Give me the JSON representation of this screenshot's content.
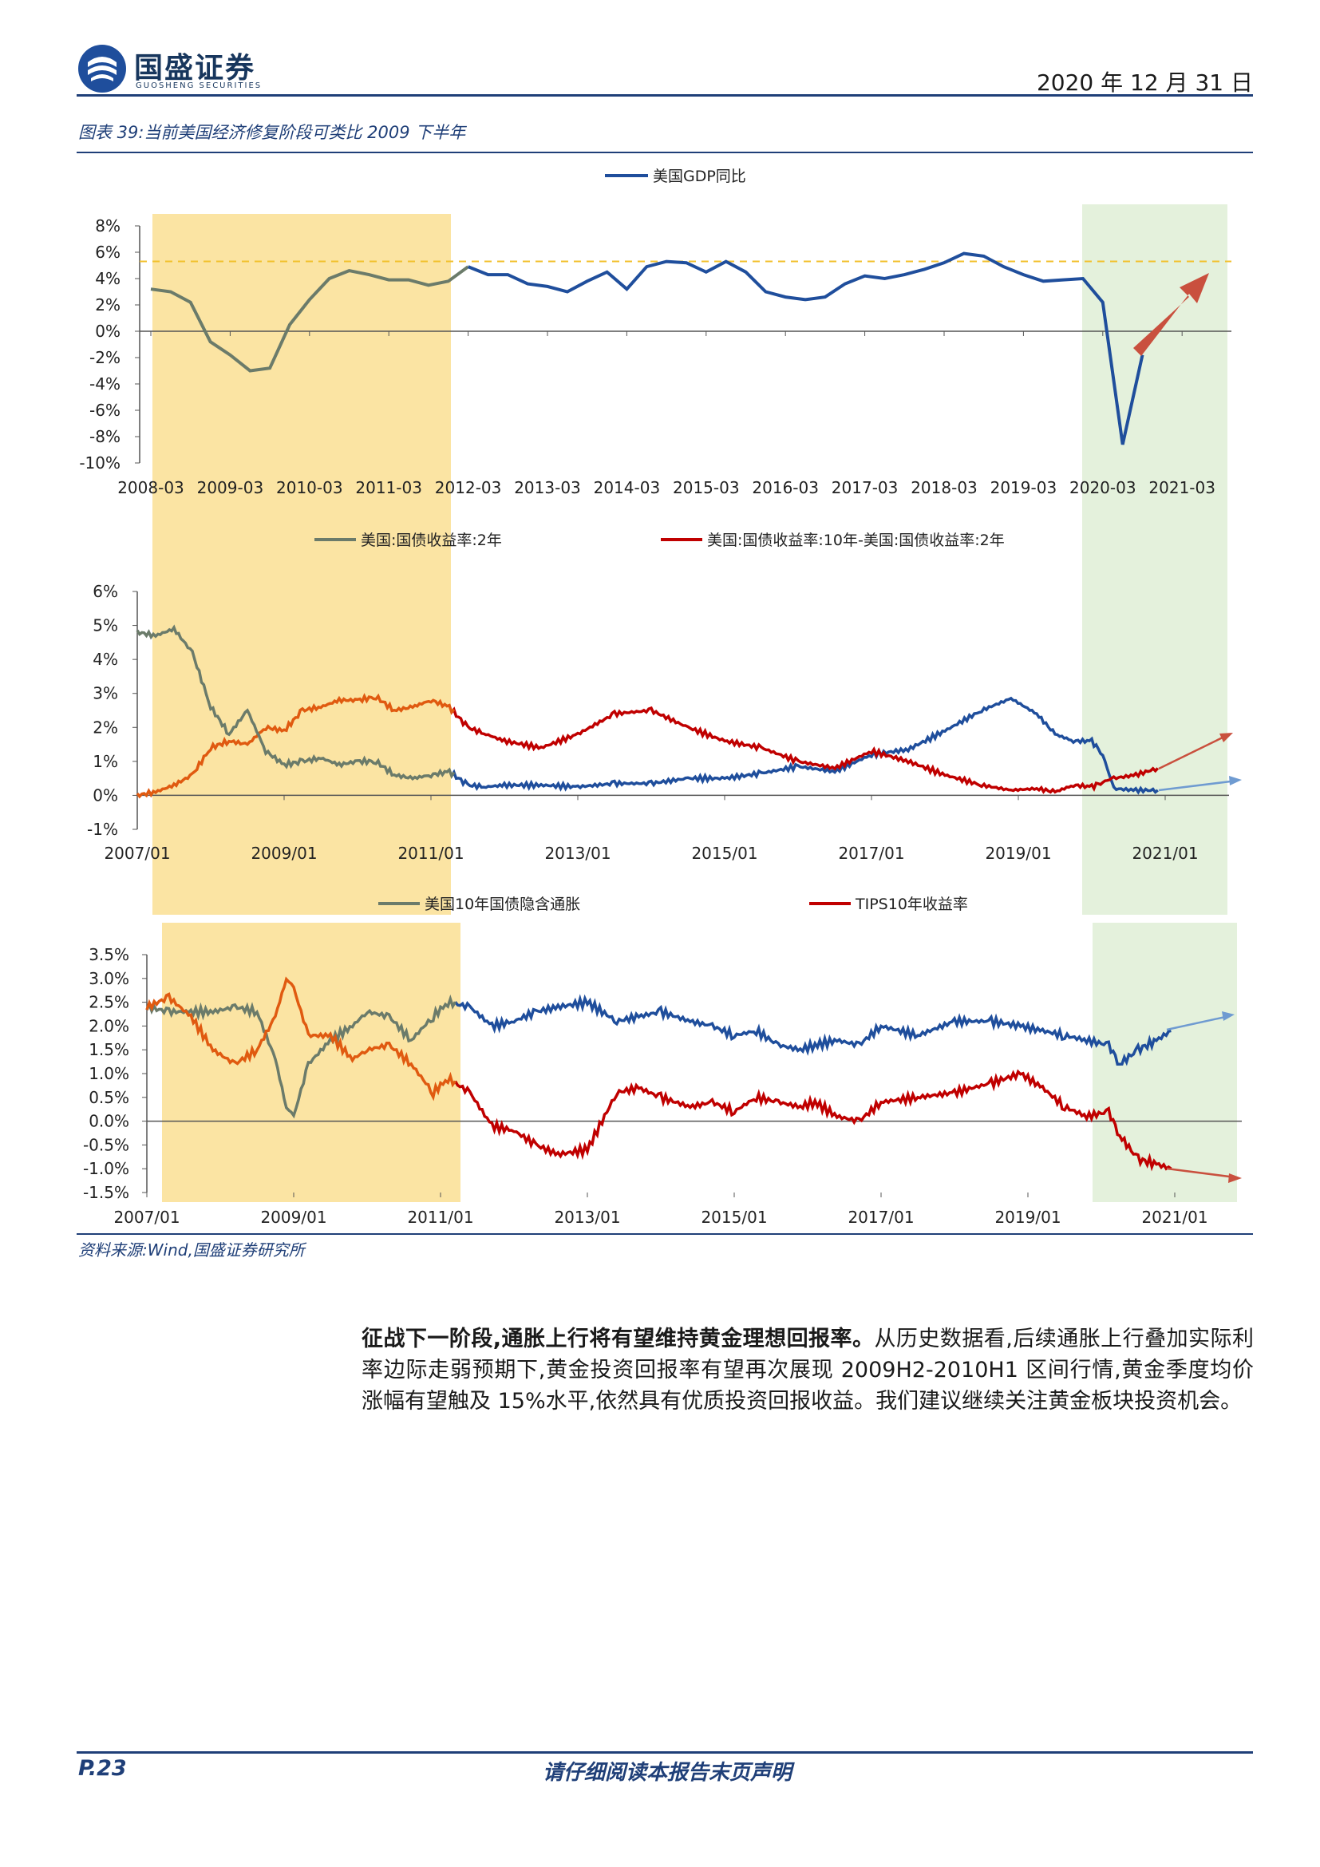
{
  "header": {
    "brand_cn": "国盛证券",
    "brand_en": "GUOSHENG SECURITIES",
    "date": "2020 年 12 月 31 日"
  },
  "figure": {
    "title": "图表 39:当前美国经济修复阶段可类比 2009 下半年",
    "source": "资料来源:Wind,国盛证券研究所"
  },
  "colors": {
    "brand": "#1f3f78",
    "blue": "#1f4e9c",
    "gray_green": "#6b7b6a",
    "red": "#c00000",
    "orange": "#e05a10",
    "yellow_band": "#fbe4a3",
    "green_band": "#e4f1dc",
    "dashed": "#f2c12e",
    "arrow_red": "#c9503e",
    "arrow_blue": "#6f9bd1"
  },
  "chart_data": [
    {
      "type": "line",
      "series": [
        {
          "name": "美国GDP同比",
          "x": [
            "2008-03",
            "2008-06",
            "2008-09",
            "2008-12",
            "2009-03",
            "2009-06",
            "2009-09",
            "2009-12",
            "2010-03",
            "2010-06",
            "2010-09",
            "2010-12",
            "2011-03",
            "2011-06",
            "2011-09",
            "2011-12",
            "2012-03",
            "2012-06",
            "2012-09",
            "2012-12",
            "2013-03",
            "2013-06",
            "2013-09",
            "2013-12",
            "2014-03",
            "2014-06",
            "2014-09",
            "2014-12",
            "2015-03",
            "2015-06",
            "2015-09",
            "2015-12",
            "2016-03",
            "2016-06",
            "2016-09",
            "2016-12",
            "2017-03",
            "2017-06",
            "2017-09",
            "2017-12",
            "2018-03",
            "2018-06",
            "2018-09",
            "2018-12",
            "2019-03",
            "2019-06",
            "2019-09",
            "2019-12",
            "2020-03",
            "2020-06",
            "2020-09"
          ],
          "values": [
            3.2,
            3.0,
            2.2,
            -0.8,
            -1.8,
            -3.0,
            -2.8,
            0.5,
            2.4,
            4.0,
            4.6,
            4.3,
            3.9,
            3.9,
            3.5,
            3.8,
            4.9,
            4.3,
            4.3,
            3.6,
            3.4,
            3.0,
            3.8,
            4.5,
            3.2,
            4.9,
            5.3,
            5.2,
            4.5,
            5.3,
            4.5,
            3.0,
            2.6,
            2.4,
            2.6,
            3.6,
            4.2,
            4.0,
            4.3,
            4.7,
            5.2,
            5.9,
            5.7,
            4.9,
            4.3,
            3.8,
            3.9,
            4.0,
            2.2,
            -8.6,
            -1.8
          ]
        }
      ],
      "reference_line": 5.3,
      "xlabels": [
        "2008-03",
        "2009-03",
        "2010-03",
        "2011-03",
        "2012-03",
        "2013-03",
        "2014-03",
        "2015-03",
        "2016-03",
        "2017-03",
        "2018-03",
        "2019-03",
        "2020-03",
        "2021-03"
      ],
      "yticks": [
        "8%",
        "6%",
        "4%",
        "2%",
        "0%",
        "-2%",
        "-4%",
        "-6%",
        "-8%",
        "-10%"
      ],
      "ylim": [
        -10,
        8
      ],
      "legend": "top"
    },
    {
      "type": "line",
      "series": [
        {
          "name": "美国:国债收益率:2年",
          "color": "blue",
          "x": [
            2007.0,
            2007.25,
            2007.5,
            2007.75,
            2008.0,
            2008.25,
            2008.5,
            2008.75,
            2009.0,
            2009.25,
            2009.5,
            2009.75,
            2010.0,
            2010.25,
            2010.5,
            2010.75,
            2011.0,
            2011.25,
            2011.5,
            2011.75,
            2012.0,
            2012.5,
            2013.0,
            2013.5,
            2014.0,
            2014.5,
            2015.0,
            2015.5,
            2016.0,
            2016.5,
            2017.0,
            2017.5,
            2018.0,
            2018.5,
            2018.9,
            2019.25,
            2019.5,
            2019.75,
            2020.0,
            2020.15,
            2020.3,
            2020.6,
            2020.9
          ],
          "values": [
            4.8,
            4.7,
            4.9,
            4.2,
            2.6,
            1.8,
            2.5,
            1.3,
            0.9,
            1.0,
            1.1,
            0.9,
            1.0,
            1.0,
            0.6,
            0.5,
            0.6,
            0.7,
            0.3,
            0.25,
            0.3,
            0.3,
            0.25,
            0.35,
            0.35,
            0.5,
            0.5,
            0.65,
            0.85,
            0.7,
            1.2,
            1.35,
            1.9,
            2.5,
            2.85,
            2.4,
            1.8,
            1.6,
            1.6,
            1.2,
            0.2,
            0.15,
            0.15
          ]
        },
        {
          "name": "美国:国债收益率:10年-美国:国债收益率:2年",
          "color": "red",
          "x": [
            2007.0,
            2007.25,
            2007.5,
            2007.75,
            2008.0,
            2008.25,
            2008.5,
            2008.75,
            2009.0,
            2009.25,
            2009.5,
            2009.75,
            2010.0,
            2010.25,
            2010.5,
            2010.75,
            2011.0,
            2011.25,
            2011.5,
            2011.75,
            2012.0,
            2012.5,
            2013.0,
            2013.5,
            2014.0,
            2014.5,
            2015.0,
            2015.5,
            2016.0,
            2016.5,
            2017.0,
            2017.5,
            2018.0,
            2018.5,
            2018.9,
            2019.25,
            2019.5,
            2019.75,
            2020.0,
            2020.15,
            2020.3,
            2020.6,
            2020.9
          ],
          "values": [
            0.0,
            0.1,
            0.3,
            0.6,
            1.4,
            1.6,
            1.5,
            2.0,
            1.9,
            2.5,
            2.6,
            2.8,
            2.8,
            2.9,
            2.5,
            2.6,
            2.8,
            2.6,
            2.0,
            1.8,
            1.6,
            1.4,
            1.8,
            2.4,
            2.5,
            2.0,
            1.6,
            1.4,
            1.0,
            0.8,
            1.3,
            1.0,
            0.6,
            0.3,
            0.15,
            0.2,
            0.1,
            0.3,
            0.25,
            0.4,
            0.5,
            0.6,
            0.8
          ]
        }
      ],
      "xlabels": [
        "2007/01",
        "2009/01",
        "2011/01",
        "2013/01",
        "2015/01",
        "2017/01",
        "2019/01",
        "2021/01"
      ],
      "yticks": [
        "6%",
        "5%",
        "4%",
        "3%",
        "2%",
        "1%",
        "0%",
        "-1%"
      ],
      "ylim": [
        -1,
        6
      ],
      "legend": "top"
    },
    {
      "type": "line",
      "series": [
        {
          "name": "美国10年国债隐含通胀",
          "color": "blue",
          "x": [
            2007.0,
            2007.3,
            2007.6,
            2007.9,
            2008.2,
            2008.5,
            2008.75,
            2008.9,
            2009.0,
            2009.2,
            2009.5,
            2009.8,
            2010.0,
            2010.3,
            2010.6,
            2010.9,
            2011.1,
            2011.4,
            2011.7,
            2012.0,
            2012.3,
            2012.6,
            2013.0,
            2013.4,
            2013.7,
            2014.0,
            2014.4,
            2014.7,
            2015.0,
            2015.3,
            2015.6,
            2015.9,
            2016.1,
            2016.4,
            2016.7,
            2017.0,
            2017.5,
            2018.0,
            2018.5,
            2018.9,
            2019.2,
            2019.5,
            2019.8,
            2020.1,
            2020.25,
            2020.5,
            2020.75,
            2020.95
          ],
          "values": [
            2.4,
            2.3,
            2.3,
            2.3,
            2.4,
            2.3,
            1.3,
            0.3,
            0.1,
            1.2,
            1.7,
            2.0,
            2.3,
            2.2,
            1.7,
            2.2,
            2.5,
            2.4,
            2.0,
            2.1,
            2.3,
            2.4,
            2.5,
            2.1,
            2.2,
            2.3,
            2.1,
            2.0,
            1.8,
            1.9,
            1.6,
            1.5,
            1.6,
            1.7,
            1.6,
            2.0,
            1.8,
            2.1,
            2.1,
            2.0,
            1.9,
            1.8,
            1.7,
            1.6,
            1.2,
            1.5,
            1.7,
            1.9
          ]
        },
        {
          "name": "TIPS10年收益率",
          "color": "red",
          "x": [
            2007.0,
            2007.3,
            2007.6,
            2007.9,
            2008.2,
            2008.5,
            2008.75,
            2008.9,
            2009.0,
            2009.2,
            2009.5,
            2009.8,
            2010.0,
            2010.3,
            2010.6,
            2010.9,
            2011.1,
            2011.4,
            2011.7,
            2012.0,
            2012.3,
            2012.6,
            2013.0,
            2013.4,
            2013.7,
            2014.0,
            2014.4,
            2014.7,
            2015.0,
            2015.3,
            2015.6,
            2015.9,
            2016.1,
            2016.4,
            2016.7,
            2017.0,
            2017.5,
            2018.0,
            2018.5,
            2018.9,
            2019.2,
            2019.5,
            2019.8,
            2020.1,
            2020.25,
            2020.5,
            2020.75,
            2020.95
          ],
          "values": [
            2.4,
            2.6,
            2.2,
            1.5,
            1.2,
            1.5,
            2.2,
            3.0,
            2.8,
            1.8,
            1.8,
            1.3,
            1.5,
            1.6,
            1.2,
            0.6,
            0.9,
            0.6,
            -0.1,
            -0.2,
            -0.5,
            -0.7,
            -0.6,
            0.6,
            0.7,
            0.5,
            0.3,
            0.4,
            0.2,
            0.5,
            0.4,
            0.3,
            0.4,
            0.1,
            0.0,
            0.4,
            0.5,
            0.6,
            0.8,
            1.0,
            0.7,
            0.3,
            0.1,
            0.2,
            -0.3,
            -0.8,
            -0.9,
            -1.0
          ]
        }
      ],
      "xlabels": [
        "2007/01",
        "2009/01",
        "2011/01",
        "2013/01",
        "2015/01",
        "2017/01",
        "2019/01",
        "2021/01"
      ],
      "yticks": [
        "3.5%",
        "3.0%",
        "2.5%",
        "2.0%",
        "1.5%",
        "1.0%",
        "0.5%",
        "0.0%",
        "-0.5%",
        "-1.0%",
        "-1.5%"
      ],
      "ylim": [
        -1.5,
        3.5
      ],
      "legend": "top"
    }
  ],
  "body": {
    "lead": "征战下一阶段,通胀上行将有望维持黄金理想回报率。",
    "text": "从历史数据看,后续通胀上行叠加实际利率边际走弱预期下,黄金投资回报率有望再次展现 2009H2-2010H1 区间行情,黄金季度均价涨幅有望触及 15%水平,依然具有优质投资回报收益。我们建议继续关注黄金板块投资机会。"
  },
  "footer": {
    "page": "P.23",
    "disclaimer": "请仔细阅读本报告末页声明"
  }
}
